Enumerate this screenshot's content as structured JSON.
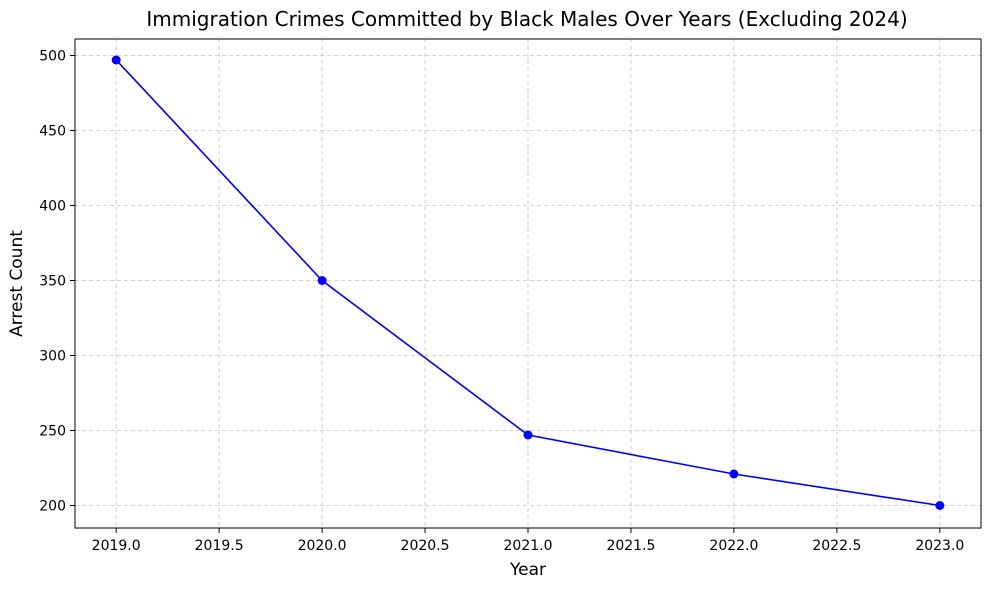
{
  "chart_data": {
    "type": "line",
    "title": "Immigration Crimes Committed by Black Males Over Years (Excluding 2024)",
    "xlabel": "Year",
    "ylabel": "Arrest Count",
    "x": [
      2019,
      2020,
      2021,
      2022,
      2023
    ],
    "series": [
      {
        "values": [
          497,
          350,
          247,
          221,
          200
        ],
        "color": "#0000ff",
        "marker": "circle"
      }
    ],
    "xlim": [
      2018.8,
      2023.2
    ],
    "ylim": [
      185,
      511
    ],
    "xticks": [
      2019.0,
      2019.5,
      2020.0,
      2020.5,
      2021.0,
      2021.5,
      2022.0,
      2022.5,
      2023.0
    ],
    "xtick_labels": [
      "2019.0",
      "2019.5",
      "2020.0",
      "2020.5",
      "2021.0",
      "2021.5",
      "2022.0",
      "2022.5",
      "2023.0"
    ],
    "yticks": [
      200,
      250,
      300,
      350,
      400,
      450,
      500
    ],
    "ytick_labels": [
      "200",
      "250",
      "300",
      "350",
      "400",
      "450",
      "500"
    ],
    "grid": true,
    "legend": false
  }
}
